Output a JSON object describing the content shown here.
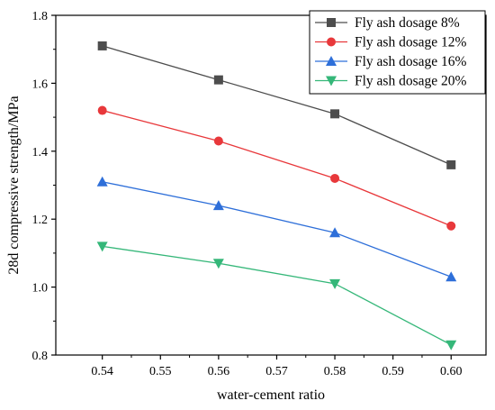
{
  "chart_data": {
    "type": "line",
    "title": "",
    "xlabel": "water-cement ratio",
    "ylabel": "28d compressive strength/MPa",
    "xlim": [
      0.532,
      0.606
    ],
    "ylim": [
      0.8,
      1.8
    ],
    "x_ticks": [
      0.54,
      0.55,
      0.56,
      0.57,
      0.58,
      0.59,
      0.6
    ],
    "x_tick_labels": [
      "0.54",
      "0.55",
      "0.56",
      "0.57",
      "0.58",
      "0.59",
      "0.60"
    ],
    "y_ticks": [
      0.8,
      1.0,
      1.2,
      1.4,
      1.6,
      1.8
    ],
    "y_tick_labels": [
      "0.8",
      "1.0",
      "1.2",
      "1.4",
      "1.6",
      "1.8"
    ],
    "grid": false,
    "legend_position": "top-right",
    "x": [
      0.54,
      0.56,
      0.58,
      0.6
    ],
    "series": [
      {
        "name": "Fly ash dosage 8%",
        "values": [
          1.71,
          1.61,
          1.51,
          1.36
        ],
        "color": "#4d4d4d",
        "marker": "square"
      },
      {
        "name": "Fly ash dosage 12%",
        "values": [
          1.52,
          1.43,
          1.32,
          1.18
        ],
        "color": "#e8383b",
        "marker": "circle"
      },
      {
        "name": "Fly ash dosage 16%",
        "values": [
          1.31,
          1.24,
          1.16,
          1.03
        ],
        "color": "#2e6fd9",
        "marker": "triangle-up"
      },
      {
        "name": "Fly ash dosage 20%",
        "values": [
          1.12,
          1.07,
          1.01,
          0.83
        ],
        "color": "#35b779",
        "marker": "triangle-down"
      }
    ]
  }
}
